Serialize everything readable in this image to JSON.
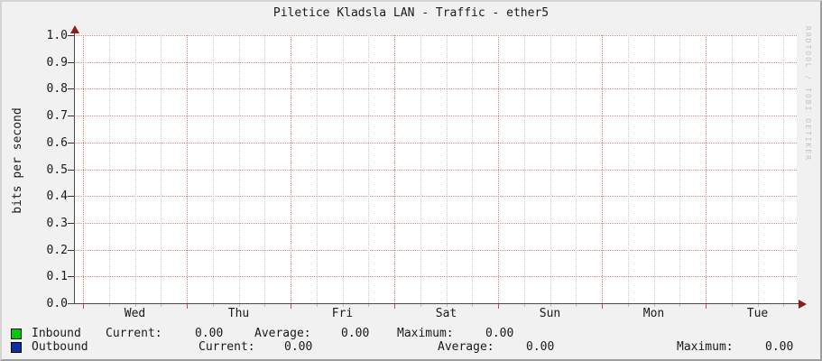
{
  "title": "Piletice Kladsla LAN - Traffic - ether5",
  "watermark": "RRDTOOL / TOBI OETIKER",
  "chart_data": {
    "type": "line",
    "title": "Piletice Kladsla LAN - Traffic - ether5",
    "xlabel": "",
    "ylabel": "bits per second",
    "ylim": [
      0.0,
      1.0
    ],
    "y_ticks": [
      "1.0",
      "0.9",
      "0.8",
      "0.7",
      "0.6",
      "0.5",
      "0.4",
      "0.3",
      "0.2",
      "0.1",
      "0.0"
    ],
    "x_ticks": [
      "Wed",
      "Thu",
      "Fri",
      "Sat",
      "Sun",
      "Mon",
      "Tue"
    ],
    "grid": "major gridlines red dotted, minor gridlines gray dotted, legend bottom-left",
    "series": [
      {
        "name": "Inbound",
        "color": "#00CC00",
        "values": [
          0,
          0,
          0,
          0,
          0,
          0,
          0
        ],
        "current": 0.0,
        "average": 0.0,
        "maximum": 0.0
      },
      {
        "name": "Outbound",
        "color": "#0B2FA8",
        "values": [
          0,
          0,
          0,
          0,
          0,
          0,
          0
        ],
        "current": 0.0,
        "average": 0.0,
        "maximum": 0.0
      }
    ]
  },
  "legend": {
    "rows": [
      {
        "label": "Inbound",
        "swatch": "#00CC00",
        "current_label": "Current:",
        "current": "0.00",
        "average_label": "Average:",
        "average": "0.00",
        "maximum_label": "Maximum:",
        "maximum": "0.00"
      },
      {
        "label": "Outbound",
        "swatch": "#0B2FA8",
        "current_label": "Current:",
        "current": "0.00",
        "average_label": "Average:",
        "average": "0.00",
        "maximum_label": "Maximum:",
        "maximum": "0.00"
      }
    ]
  },
  "colors": {
    "background": "#f1f1f1",
    "canvas": "#ffffff",
    "major_grid": "#e08a8a",
    "minor_grid": "#cbcbcb",
    "axis": "#4a4a4a",
    "arrow": "#8b1d1d",
    "inbound": "#00CC00",
    "outbound": "#0B2FA8",
    "watermark_text": "#c2c2c2"
  }
}
